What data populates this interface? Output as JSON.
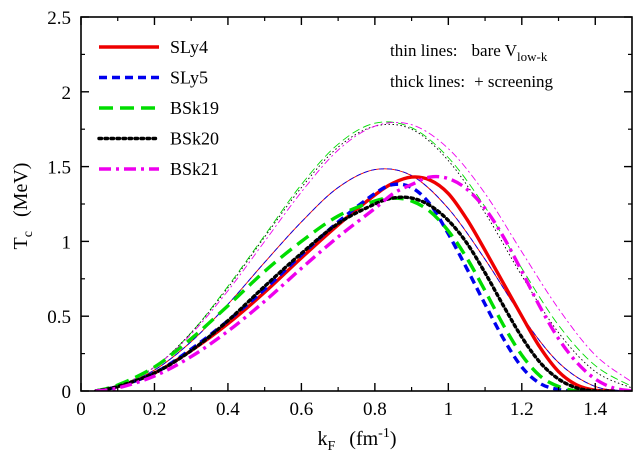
{
  "chart_data": {
    "type": "line",
    "xlabel": {
      "main": "k",
      "sub": "F",
      "unit_pre": "(fm",
      "unit_sup": "-1",
      "unit_post": ")"
    },
    "ylabel": {
      "main": "T",
      "sub": "c",
      "unit": "(MeV)"
    },
    "xlim": [
      0,
      1.5
    ],
    "ylim": [
      0,
      2.5
    ],
    "xticks": [
      0,
      0.2,
      0.4,
      0.6,
      0.8,
      1,
      1.2,
      1.4
    ],
    "xtick_labels": [
      "0",
      "0.2",
      "0.4",
      "0.6",
      "0.8",
      "1",
      "1.2",
      "1.4"
    ],
    "yticks": [
      0,
      0.5,
      1,
      1.5,
      2,
      2.5
    ],
    "ytick_labels": [
      "0",
      "0.5",
      "1",
      "1.5",
      "2",
      "2.5"
    ],
    "grid": false,
    "legend_placement": "top-left",
    "annotations": [
      {
        "label": "thin lines:",
        "text": "bare V",
        "sub": "low-k"
      },
      {
        "label": "thick lines:",
        "text": "+ screening"
      }
    ],
    "series": [
      {
        "name": "SLy4",
        "color": "#ee0000",
        "dash": "solid",
        "bare": {
          "x": [
            0.04,
            0.1,
            0.2,
            0.3,
            0.4,
            0.5,
            0.6,
            0.7,
            0.8,
            0.9,
            1.0,
            1.1,
            1.2,
            1.3,
            1.4,
            1.5
          ],
          "y": [
            0,
            0.03,
            0.14,
            0.33,
            0.58,
            0.86,
            1.13,
            1.36,
            1.48,
            1.44,
            1.22,
            0.88,
            0.5,
            0.19,
            0.03,
            0
          ]
        },
        "screened": {
          "x": [
            0.04,
            0.1,
            0.2,
            0.3,
            0.4,
            0.5,
            0.6,
            0.7,
            0.8,
            0.85,
            0.9,
            0.95,
            1.0,
            1.05,
            1.1,
            1.2,
            1.25,
            1.3,
            1.35,
            1.4,
            1.45
          ],
          "y": [
            0,
            0.03,
            0.12,
            0.27,
            0.45,
            0.66,
            0.89,
            1.11,
            1.31,
            1.39,
            1.43,
            1.41,
            1.32,
            1.15,
            0.94,
            0.5,
            0.29,
            0.13,
            0.04,
            0.005,
            0
          ]
        }
      },
      {
        "name": "SLy5",
        "color": "#0000ee",
        "dash": "dash",
        "bare": {
          "x": [
            0.04,
            0.1,
            0.2,
            0.3,
            0.4,
            0.5,
            0.6,
            0.7,
            0.8,
            0.9,
            1.0,
            1.1,
            1.2,
            1.3,
            1.4,
            1.5
          ],
          "y": [
            0,
            0.03,
            0.14,
            0.33,
            0.58,
            0.86,
            1.13,
            1.36,
            1.48,
            1.44,
            1.22,
            0.88,
            0.5,
            0.19,
            0.03,
            0
          ]
        },
        "screened": {
          "x": [
            0.04,
            0.1,
            0.2,
            0.3,
            0.4,
            0.5,
            0.6,
            0.7,
            0.8,
            0.85,
            0.9,
            0.95,
            1.0,
            1.05,
            1.1,
            1.15,
            1.2,
            1.25,
            1.3,
            1.35,
            1.4
          ],
          "y": [
            0,
            0.03,
            0.12,
            0.28,
            0.47,
            0.68,
            0.91,
            1.13,
            1.32,
            1.38,
            1.36,
            1.25,
            1.05,
            0.82,
            0.58,
            0.35,
            0.16,
            0.05,
            0.01,
            0,
            0
          ]
        }
      },
      {
        "name": "BSk19",
        "color": "#00dd00",
        "dash": "longdash",
        "bare": {
          "x": [
            0.04,
            0.1,
            0.2,
            0.3,
            0.4,
            0.5,
            0.6,
            0.7,
            0.8,
            0.9,
            1.0,
            1.1,
            1.2,
            1.3,
            1.4,
            1.5
          ],
          "y": [
            0,
            0.03,
            0.16,
            0.39,
            0.7,
            1.04,
            1.38,
            1.65,
            1.79,
            1.76,
            1.56,
            1.23,
            0.82,
            0.44,
            0.17,
            0.03
          ]
        },
        "screened": {
          "x": [
            0.04,
            0.1,
            0.2,
            0.3,
            0.4,
            0.5,
            0.6,
            0.7,
            0.8,
            0.85,
            0.9,
            0.95,
            1.0,
            1.05,
            1.1,
            1.15,
            1.2,
            1.25,
            1.3,
            1.35,
            1.4
          ],
          "y": [
            0,
            0.04,
            0.16,
            0.35,
            0.57,
            0.8,
            1.0,
            1.17,
            1.27,
            1.29,
            1.27,
            1.2,
            1.07,
            0.89,
            0.67,
            0.44,
            0.24,
            0.1,
            0.03,
            0,
            0
          ]
        }
      },
      {
        "name": "BSk20",
        "color": "#000000",
        "dash": "dot",
        "bare": {
          "x": [
            0.04,
            0.1,
            0.2,
            0.3,
            0.4,
            0.5,
            0.6,
            0.7,
            0.8,
            0.9,
            1.0,
            1.1,
            1.2,
            1.3,
            1.4,
            1.5
          ],
          "y": [
            0,
            0.03,
            0.16,
            0.39,
            0.69,
            1.03,
            1.36,
            1.63,
            1.77,
            1.75,
            1.54,
            1.19,
            0.77,
            0.39,
            0.13,
            0.02
          ]
        },
        "screened": {
          "x": [
            0.04,
            0.1,
            0.2,
            0.3,
            0.4,
            0.5,
            0.6,
            0.7,
            0.8,
            0.85,
            0.9,
            0.95,
            1.0,
            1.05,
            1.1,
            1.15,
            1.2,
            1.25,
            1.3,
            1.35,
            1.4,
            1.45
          ],
          "y": [
            0,
            0.03,
            0.12,
            0.27,
            0.47,
            0.7,
            0.92,
            1.12,
            1.25,
            1.29,
            1.29,
            1.24,
            1.14,
            0.99,
            0.79,
            0.57,
            0.36,
            0.19,
            0.08,
            0.02,
            0,
            0
          ]
        }
      },
      {
        "name": "BSk21",
        "color": "#ee00ee",
        "dash": "dashdot",
        "bare": {
          "x": [
            0.04,
            0.1,
            0.2,
            0.3,
            0.4,
            0.5,
            0.6,
            0.7,
            0.8,
            0.9,
            1.0,
            1.1,
            1.2,
            1.3,
            1.4,
            1.5
          ],
          "y": [
            0,
            0.03,
            0.16,
            0.38,
            0.67,
            1.0,
            1.33,
            1.61,
            1.77,
            1.78,
            1.62,
            1.32,
            0.93,
            0.55,
            0.24,
            0.06
          ]
        },
        "screened": {
          "x": [
            0.04,
            0.1,
            0.2,
            0.3,
            0.4,
            0.5,
            0.6,
            0.7,
            0.8,
            0.85,
            0.9,
            0.95,
            1.0,
            1.05,
            1.1,
            1.15,
            1.2,
            1.25,
            1.3,
            1.35,
            1.4,
            1.45,
            1.5
          ],
          "y": [
            0,
            0.02,
            0.1,
            0.23,
            0.4,
            0.6,
            0.82,
            1.03,
            1.22,
            1.32,
            1.38,
            1.43,
            1.42,
            1.35,
            1.22,
            1.03,
            0.8,
            0.56,
            0.35,
            0.19,
            0.08,
            0.02,
            0
          ]
        }
      }
    ]
  }
}
